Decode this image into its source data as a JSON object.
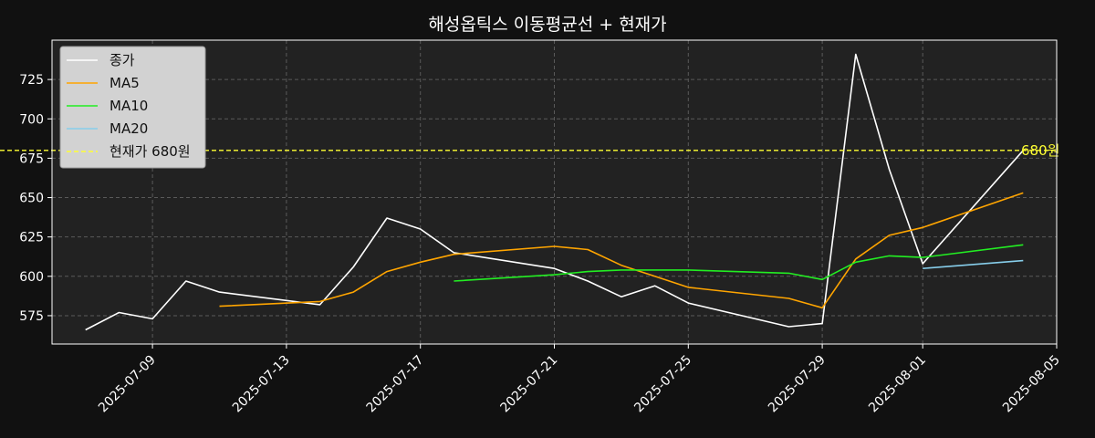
{
  "chart_data": {
    "type": "line",
    "title": "해성옵틱스 이동평균선 + 현재가",
    "xlabel": "",
    "ylabel": "",
    "xlim": [
      "2025-07-06",
      "2025-08-05"
    ],
    "ylim": [
      557,
      750
    ],
    "xticks": [
      "2025-07-09",
      "2025-07-13",
      "2025-07-17",
      "2025-07-21",
      "2025-07-25",
      "2025-07-29",
      "2025-08-01",
      "2025-08-05"
    ],
    "yticks": [
      575,
      600,
      625,
      650,
      675,
      700,
      725
    ],
    "grid": true,
    "legend_position": "top-left",
    "colors": {
      "figure_bg": "#111111",
      "axes_bg": "#222222",
      "close": "#ffffff",
      "ma5": "#ffa500",
      "ma10": "#22ee22",
      "ma20": "#87ceeb",
      "current": "#ffff33"
    },
    "series": [
      {
        "name": "종가",
        "key": "close",
        "points": [
          [
            "2025-07-07",
            566
          ],
          [
            "2025-07-08",
            577
          ],
          [
            "2025-07-09",
            573
          ],
          [
            "2025-07-10",
            597
          ],
          [
            "2025-07-11",
            590
          ],
          [
            "2025-07-14",
            582
          ],
          [
            "2025-07-15",
            606
          ],
          [
            "2025-07-16",
            637
          ],
          [
            "2025-07-17",
            630
          ],
          [
            "2025-07-18",
            615
          ],
          [
            "2025-07-21",
            605
          ],
          [
            "2025-07-22",
            597
          ],
          [
            "2025-07-23",
            587
          ],
          [
            "2025-07-24",
            594
          ],
          [
            "2025-07-25",
            583
          ],
          [
            "2025-07-28",
            568
          ],
          [
            "2025-07-29",
            570
          ],
          [
            "2025-07-30",
            741
          ],
          [
            "2025-07-31",
            668
          ],
          [
            "2025-08-01",
            608
          ],
          [
            "2025-08-04",
            680
          ]
        ]
      },
      {
        "name": "MA5",
        "key": "ma5",
        "points": [
          [
            "2025-07-11",
            581
          ],
          [
            "2025-07-14",
            584
          ],
          [
            "2025-07-15",
            590
          ],
          [
            "2025-07-16",
            603
          ],
          [
            "2025-07-17",
            609
          ],
          [
            "2025-07-18",
            614
          ],
          [
            "2025-07-21",
            619
          ],
          [
            "2025-07-22",
            617
          ],
          [
            "2025-07-23",
            607
          ],
          [
            "2025-07-24",
            600
          ],
          [
            "2025-07-25",
            593
          ],
          [
            "2025-07-28",
            586
          ],
          [
            "2025-07-29",
            580
          ],
          [
            "2025-07-30",
            611
          ],
          [
            "2025-07-31",
            626
          ],
          [
            "2025-08-01",
            631
          ],
          [
            "2025-08-04",
            653
          ]
        ]
      },
      {
        "name": "MA10",
        "key": "ma10",
        "points": [
          [
            "2025-07-18",
            597
          ],
          [
            "2025-07-21",
            601
          ],
          [
            "2025-07-22",
            603
          ],
          [
            "2025-07-23",
            604
          ],
          [
            "2025-07-24",
            604
          ],
          [
            "2025-07-25",
            604
          ],
          [
            "2025-07-28",
            602
          ],
          [
            "2025-07-29",
            598
          ],
          [
            "2025-07-30",
            609
          ],
          [
            "2025-07-31",
            613
          ],
          [
            "2025-08-01",
            612
          ],
          [
            "2025-08-04",
            620
          ]
        ]
      },
      {
        "name": "MA20",
        "key": "ma20",
        "points": [
          [
            "2025-08-01",
            605
          ],
          [
            "2025-08-04",
            610
          ]
        ]
      }
    ],
    "current_price": {
      "value": 680,
      "legend_label": "현재가 680원",
      "annotation": "680원"
    }
  }
}
